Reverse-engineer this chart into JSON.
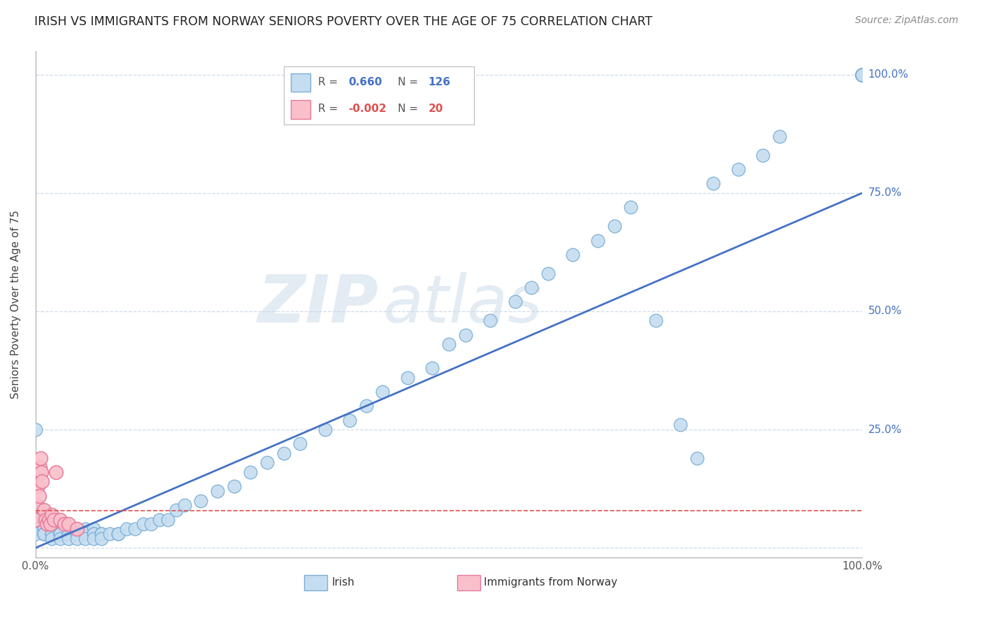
{
  "title": "IRISH VS IMMIGRANTS FROM NORWAY SENIORS POVERTY OVER THE AGE OF 75 CORRELATION CHART",
  "source_text": "Source: ZipAtlas.com",
  "ylabel": "Seniors Poverty Over the Age of 75",
  "legend_irish": "Irish",
  "legend_norway": "Immigrants from Norway",
  "R_irish": 0.66,
  "N_irish": 126,
  "R_norway": -0.002,
  "N_norway": 20,
  "irish_color": "#c5ddf0",
  "irish_edge_color": "#7bafd6",
  "norway_color": "#f9c0cb",
  "norway_edge_color": "#e87898",
  "trend_irish_color": "#4472c4",
  "trend_norway_color": "#e05050",
  "watermark_color": "#c8d8e8",
  "background_color": "#ffffff",
  "grid_color": "#c8d8e8",
  "axis_color": "#555555",
  "title_color": "#222222",
  "right_label_color": "#4472c4",
  "legend_R_color": "#4472c4",
  "legend_R2_color": "#e05050",
  "irish_x": [
    0.0,
    0.0,
    0.0,
    0.0,
    0.0,
    0.0,
    0.0,
    0.0,
    0.0,
    0.0,
    0.01,
    0.01,
    0.01,
    0.01,
    0.01,
    0.01,
    0.01,
    0.01,
    0.01,
    0.01,
    0.01,
    0.01,
    0.02,
    0.02,
    0.02,
    0.02,
    0.02,
    0.02,
    0.02,
    0.02,
    0.03,
    0.03,
    0.03,
    0.03,
    0.03,
    0.03,
    0.03,
    0.04,
    0.04,
    0.04,
    0.04,
    0.04,
    0.04,
    0.05,
    0.05,
    0.05,
    0.05,
    0.05,
    0.06,
    0.06,
    0.06,
    0.06,
    0.07,
    0.07,
    0.07,
    0.07,
    0.08,
    0.08,
    0.08,
    0.09,
    0.1,
    0.1,
    0.11,
    0.12,
    0.13,
    0.14,
    0.15,
    0.16,
    0.17,
    0.18,
    0.2,
    0.22,
    0.24,
    0.26,
    0.28,
    0.3,
    0.32,
    0.35,
    0.38,
    0.4,
    0.42,
    0.45,
    0.48,
    0.5,
    0.52,
    0.55,
    0.58,
    0.6,
    0.62,
    0.65,
    0.68,
    0.7,
    0.72,
    0.75,
    0.78,
    0.8,
    0.82,
    0.85,
    0.88,
    0.9,
    1.0,
    1.0,
    1.0,
    1.0,
    1.0,
    1.0,
    1.0,
    1.0,
    1.0,
    1.0,
    1.0,
    1.0,
    1.0,
    1.0,
    1.0,
    1.0,
    1.0,
    1.0,
    1.0,
    1.0,
    1.0,
    1.0,
    1.0,
    1.0,
    1.0,
    1.0
  ],
  "irish_y": [
    0.25,
    0.08,
    0.07,
    0.06,
    0.06,
    0.05,
    0.05,
    0.04,
    0.04,
    0.03,
    0.08,
    0.07,
    0.06,
    0.06,
    0.05,
    0.05,
    0.04,
    0.04,
    0.03,
    0.03,
    0.03,
    0.03,
    0.05,
    0.05,
    0.04,
    0.04,
    0.03,
    0.03,
    0.03,
    0.02,
    0.05,
    0.04,
    0.04,
    0.03,
    0.03,
    0.03,
    0.02,
    0.04,
    0.04,
    0.03,
    0.03,
    0.03,
    0.02,
    0.04,
    0.04,
    0.03,
    0.03,
    0.02,
    0.04,
    0.03,
    0.03,
    0.02,
    0.04,
    0.03,
    0.03,
    0.02,
    0.03,
    0.03,
    0.02,
    0.03,
    0.03,
    0.03,
    0.04,
    0.04,
    0.05,
    0.05,
    0.06,
    0.06,
    0.08,
    0.09,
    0.1,
    0.12,
    0.13,
    0.16,
    0.18,
    0.2,
    0.22,
    0.25,
    0.27,
    0.3,
    0.33,
    0.36,
    0.38,
    0.43,
    0.45,
    0.48,
    0.52,
    0.55,
    0.58,
    0.62,
    0.65,
    0.68,
    0.72,
    0.48,
    0.26,
    0.19,
    0.77,
    0.8,
    0.83,
    0.87,
    1.0,
    1.0,
    1.0,
    1.0,
    1.0,
    1.0,
    1.0,
    1.0,
    1.0,
    1.0,
    1.0,
    1.0,
    1.0,
    1.0,
    1.0,
    1.0,
    1.0,
    1.0,
    1.0,
    1.0,
    1.0,
    1.0,
    1.0,
    1.0,
    1.0,
    1.0
  ],
  "norway_x": [
    0.0,
    0.002,
    0.003,
    0.004,
    0.005,
    0.006,
    0.007,
    0.008,
    0.01,
    0.012,
    0.014,
    0.016,
    0.018,
    0.02,
    0.022,
    0.025,
    0.03,
    0.035,
    0.04,
    0.05
  ],
  "norway_y": [
    0.06,
    0.09,
    0.13,
    0.11,
    0.17,
    0.19,
    0.16,
    0.14,
    0.08,
    0.06,
    0.05,
    0.06,
    0.05,
    0.07,
    0.06,
    0.16,
    0.06,
    0.05,
    0.05,
    0.04
  ],
  "trend_irish_x0": 0.0,
  "trend_irish_y0": 0.0,
  "trend_irish_x1": 1.0,
  "trend_irish_y1": 0.75,
  "trend_norway_y": 0.078,
  "xlim": [
    0.0,
    1.0
  ],
  "ylim": [
    -0.02,
    1.05
  ]
}
